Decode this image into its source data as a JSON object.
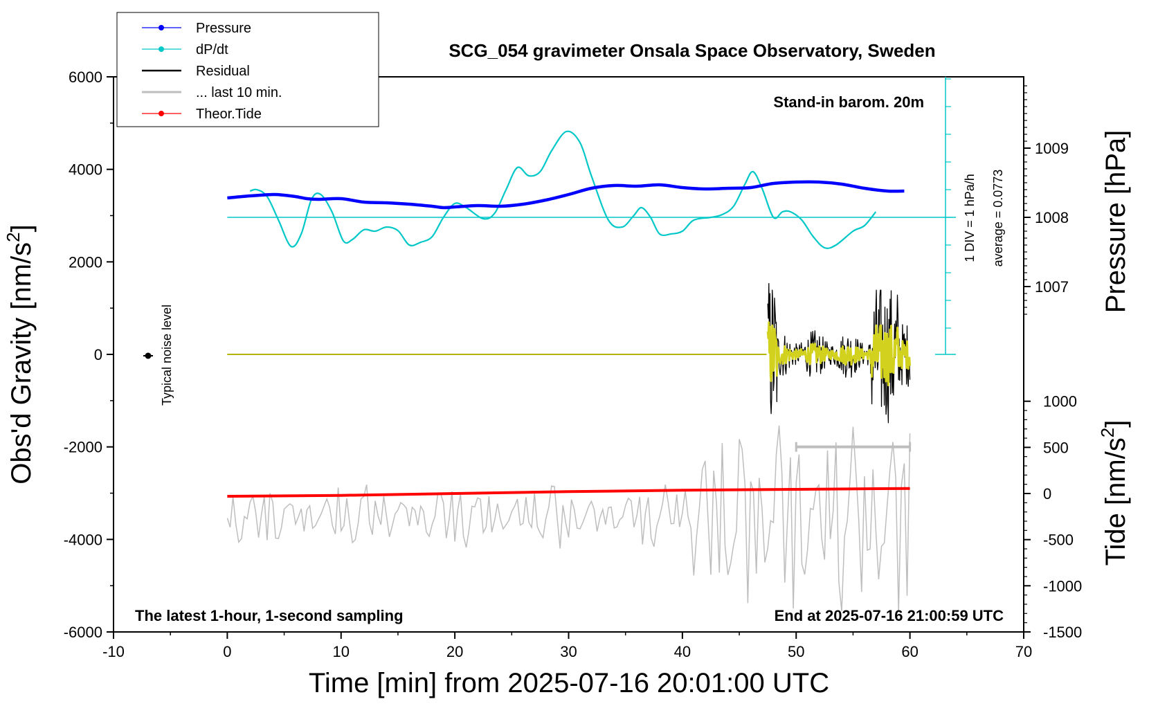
{
  "chart_data": {
    "type": "line",
    "title": "SCG_054 gravimeter Onsala Space Observatory, Sweden",
    "xlabel": "Time [min] from 2025-07-16 20:01:00 UTC",
    "xlim": [
      -10,
      70
    ],
    "xticks": [
      "-10",
      "0",
      "10",
      "20",
      "30",
      "40",
      "50",
      "60",
      "70"
    ],
    "left_axis": {
      "label_main": "Obs'd Gravity [nm/s",
      "label_sup": "2",
      "label_end": "]",
      "ylim": [
        -6000,
        6000
      ],
      "ticks": [
        "-6000",
        "-4000",
        "-2000",
        "0",
        "2000",
        "4000",
        "6000"
      ]
    },
    "pressure_axis": {
      "label": "Pressure [hPa]",
      "ticks": [
        "1007",
        "1008",
        "1009"
      ]
    },
    "tide_axis": {
      "label_main": "Tide [nm/s",
      "label_sup": "2",
      "label_end": "]",
      "ticks": [
        "-1500",
        "-1000",
        "-500",
        "0",
        "500",
        "1000"
      ]
    },
    "dpdt_scale": {
      "div_label": "1 DIV = 1 hPa/h",
      "average_label": "average = 0.0773"
    },
    "annotations": {
      "stand_in": "Stand-in barom. 20m",
      "latest": "The latest 1-hour, 1-second sampling",
      "end": "End at 2025-07-16 21:00:59 UTC",
      "noise": "Typical noise level"
    },
    "legend": [
      {
        "name": "Pressure",
        "color": "#0000ff",
        "marker": true
      },
      {
        "name": "dP/dt",
        "color": "#00c8c8",
        "marker": true
      },
      {
        "name": "Residual",
        "color": "#000000",
        "marker": false
      },
      {
        "name": "... last 10 min.",
        "color": "#bebebe",
        "marker": false
      },
      {
        "name": "Theor.Tide",
        "color": "#ff0000",
        "marker": true
      }
    ],
    "series": [
      {
        "name": "Pressure",
        "unit": "hPa",
        "color": "#0000ff",
        "x": [
          0,
          2,
          4,
          5,
          6,
          7,
          8,
          10,
          12,
          14,
          16,
          18,
          19,
          20,
          22,
          24,
          26,
          28,
          30,
          32,
          34,
          36,
          38,
          40,
          42,
          44,
          46,
          48,
          50,
          52,
          54,
          56,
          58,
          59.5
        ],
        "values": [
          1008.28,
          1008.31,
          1008.33,
          1008.32,
          1008.3,
          1008.27,
          1008.26,
          1008.27,
          1008.22,
          1008.21,
          1008.19,
          1008.16,
          1008.14,
          1008.15,
          1008.17,
          1008.16,
          1008.19,
          1008.25,
          1008.33,
          1008.42,
          1008.46,
          1008.45,
          1008.47,
          1008.43,
          1008.41,
          1008.42,
          1008.43,
          1008.49,
          1008.51,
          1008.51,
          1008.48,
          1008.42,
          1008.38,
          1008.38
        ]
      },
      {
        "name": "dP/dt",
        "unit": "hPa/h",
        "color": "#00c8c8",
        "x": [
          2,
          2.6,
          3.5,
          4.5,
          5.6,
          6.5,
          7.4,
          8.2,
          9.2,
          10.2,
          11,
          12,
          13,
          14,
          15,
          16,
          17,
          18,
          19,
          20,
          21,
          22.5,
          23.5,
          24.5,
          25.5,
          26.5,
          27.5,
          28.5,
          29.8,
          31,
          32,
          33.5,
          34.7,
          35.7,
          36.4,
          37.2,
          38,
          39,
          40,
          41,
          42.5,
          43.5,
          44.5,
          45.5,
          46.2,
          47,
          48,
          48.8,
          49.5,
          50.5,
          51.5,
          52.5,
          53.5,
          55,
          56,
          57
        ],
        "values": [
          0.95,
          1.0,
          0.75,
          -0.1,
          -1.05,
          -0.6,
          0.65,
          0.83,
          0.2,
          -0.85,
          -0.8,
          -0.45,
          -0.5,
          -0.35,
          -0.48,
          -1.0,
          -0.9,
          -0.7,
          0.0,
          0.5,
          0.35,
          -0.05,
          0.15,
          1.0,
          1.8,
          1.5,
          1.65,
          2.4,
          3.1,
          2.7,
          1.5,
          -0.1,
          -0.35,
          0.05,
          0.35,
          0.0,
          -0.6,
          -0.6,
          -0.5,
          -0.1,
          0.0,
          0.1,
          0.4,
          1.2,
          1.65,
          1.05,
          0.0,
          0.2,
          0.2,
          -0.1,
          -0.7,
          -1.1,
          -1.0,
          -0.5,
          -0.3,
          0.2
        ]
      },
      {
        "name": "Residual",
        "unit": "nm/s2",
        "color": "#000000",
        "x": [
          0,
          47.4
        ],
        "values": [
          0,
          0
        ],
        "burst_from": 47.5,
        "burst_to": 60,
        "burst_min": -2500,
        "burst_max": 2450
      },
      {
        "name": "... last 10 min.",
        "unit": "nm/s2",
        "color": "#bebebe",
        "x_range": [
          50,
          60
        ],
        "level": -2000
      },
      {
        "name": "Theor.Tide",
        "unit": "nm/s2",
        "color": "#ff0000",
        "x": [
          0,
          10,
          20,
          30,
          40,
          50,
          60
        ],
        "values": [
          -30,
          -20,
          0,
          20,
          35,
          45,
          55
        ]
      }
    ]
  }
}
